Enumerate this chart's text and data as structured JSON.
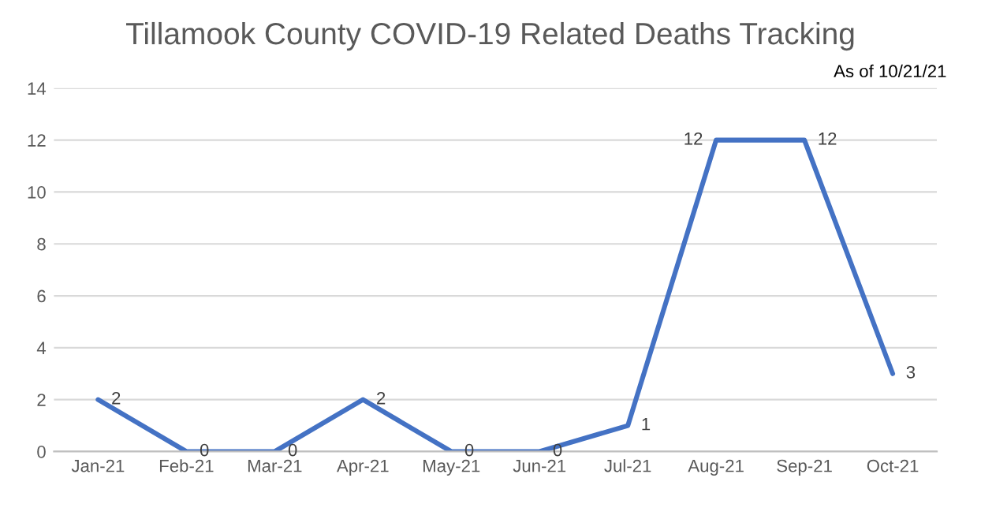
{
  "chart_data": {
    "type": "line",
    "title": "Tillamook County COVID-19 Related Deaths Tracking",
    "annotations": [
      "As of 10/21/21"
    ],
    "categories": [
      "Jan-21",
      "Feb-21",
      "Mar-21",
      "Apr-21",
      "May-21",
      "Jun-21",
      "Jul-21",
      "Aug-21",
      "Sep-21",
      "Oct-21"
    ],
    "series": [
      {
        "color": "#4472c4",
        "values": [
          2,
          0,
          0,
          2,
          0,
          0,
          1,
          12,
          12,
          3
        ]
      }
    ],
    "ylim": [
      0,
      14
    ],
    "yticks": [
      0,
      2,
      4,
      6,
      8,
      10,
      12,
      14
    ],
    "grid": "y",
    "data_labels": true,
    "marker": "none",
    "line_style": "solid"
  }
}
